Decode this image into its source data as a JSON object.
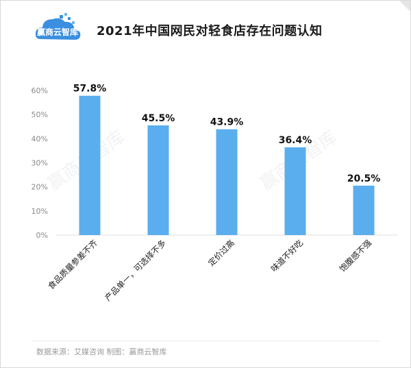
{
  "header": {
    "title": "2021年中国网民对轻食店存在问题认知",
    "logo_text": "赢商云智库"
  },
  "watermark": "赢商云智库",
  "footer": {
    "source": "数据来源：艾媒咨询   制图：赢商云智库"
  },
  "colors": {
    "bar": "#5AAEEE",
    "axis_text": "#888888",
    "grid": "#dddddd",
    "logo": "#3a8fe0"
  },
  "chart_data": {
    "type": "bar",
    "title": "2021年中国网民对轻食店存在问题认知",
    "categories": [
      "食品质量参差不齐",
      "产品单一，可选择不多",
      "定价过高",
      "味道不好吃",
      "饱腹感不强"
    ],
    "values": [
      57.8,
      45.5,
      43.9,
      36.4,
      20.5
    ],
    "value_labels": [
      "57.8%",
      "45.5%",
      "43.9%",
      "36.4%",
      "20.5%"
    ],
    "ylim": [
      0,
      60
    ],
    "yticks": [
      0,
      10,
      20,
      30,
      40,
      50,
      60
    ],
    "ytick_labels": [
      "0%",
      "10%",
      "20%",
      "30%",
      "40%",
      "50%",
      "60%"
    ],
    "xlabel": "",
    "ylabel": "",
    "grid": false,
    "legend": "none"
  }
}
